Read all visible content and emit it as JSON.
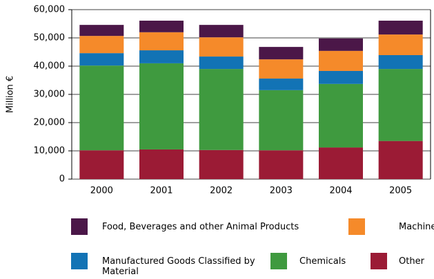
{
  "chart_data": {
    "type": "stacked-bar",
    "ylabel": "Million €",
    "categories": [
      "2000",
      "2001",
      "2002",
      "2003",
      "2004",
      "2005"
    ],
    "series": [
      {
        "name": "Other",
        "color": "#9b1b35",
        "values": [
          10200,
          10500,
          10300,
          10200,
          11200,
          13500
        ]
      },
      {
        "name": "Chemicals",
        "color": "#3f9a3f",
        "values": [
          30000,
          30500,
          28700,
          21300,
          22500,
          25500
        ]
      },
      {
        "name": "Manufactured Goods Classified by Material",
        "color": "#1273b5",
        "values": [
          4400,
          4600,
          4400,
          4100,
          4600,
          4900
        ]
      },
      {
        "name": "Machinery",
        "color": "#f58a2a",
        "values": [
          6100,
          6400,
          6800,
          6800,
          7100,
          7300
        ]
      },
      {
        "name": "Food, Beverages and other Animal Products",
        "color": "#4b1748",
        "values": [
          3900,
          4100,
          4400,
          4400,
          4400,
          4900
        ]
      }
    ],
    "ylim": [
      0,
      60000
    ],
    "yticks": [
      0,
      {
        "value": 10000,
        "label": "10,000"
      },
      {
        "value": 20000,
        "label": "20,000"
      },
      {
        "value": 30000,
        "label": "30,000"
      },
      {
        "value": 40000,
        "label": "40,000"
      },
      {
        "value": 50000,
        "label": "50,000"
      },
      {
        "value": 60000,
        "label": "60,000"
      }
    ],
    "grid": true
  }
}
